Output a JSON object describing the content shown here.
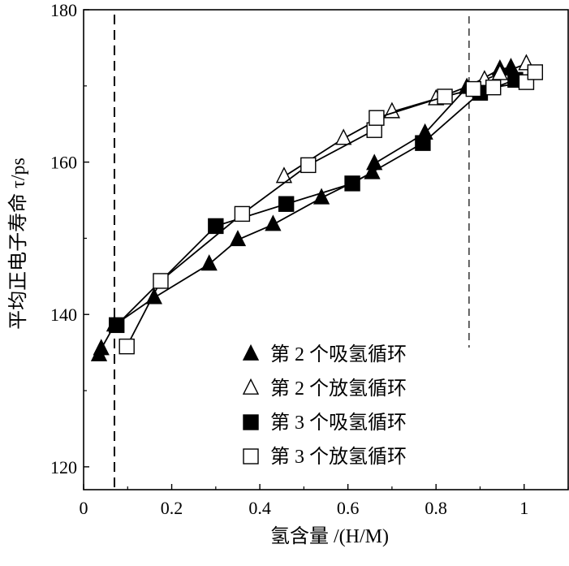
{
  "chart_data": {
    "type": "line",
    "xlabel": "氢含量 /(H/M)",
    "ylabel": "平均正电子寿命 τ/ps",
    "xlim": [
      0,
      1.1
    ],
    "ylim": [
      117,
      180
    ],
    "xticks": [
      0,
      0.2,
      0.4,
      0.6,
      0.8,
      1
    ],
    "xtick_labels": [
      "0",
      "0.2",
      "0.4",
      "0.6",
      "0.8",
      "1"
    ],
    "yticks": [
      120,
      140,
      160,
      180
    ],
    "ytick_labels": [
      "120",
      "140",
      "160",
      "180"
    ],
    "grid": false,
    "legend_position": "bottom-right",
    "reference_lines_x": [
      0.07,
      0.875
    ],
    "series": [
      {
        "name": "第 2 个吸氢循环",
        "marker": "filled-triangle",
        "x": [
          0.035,
          0.04,
          0.07,
          0.16,
          0.285,
          0.35,
          0.43,
          0.54,
          0.655,
          0.66,
          0.775,
          0.87,
          0.945,
          0.97
        ],
        "y": [
          134.7,
          135.5,
          138.6,
          142.2,
          146.6,
          149.8,
          151.8,
          155.3,
          158.6,
          159.8,
          163.8,
          169.8,
          172.2,
          172.4
        ]
      },
      {
        "name": "第 2 个放氢循环",
        "marker": "open-triangle",
        "x": [
          0.455,
          0.59,
          0.7,
          0.8,
          0.91,
          0.945,
          1.005
        ],
        "y": [
          158.1,
          163.1,
          166.6,
          168.3,
          170.8,
          171.6,
          172.9
        ]
      },
      {
        "name": "第 3 个吸氢循环",
        "marker": "filled-square",
        "x": [
          0.075,
          0.3,
          0.46,
          0.61,
          0.77,
          0.9,
          0.98
        ],
        "y": [
          138.6,
          151.6,
          154.5,
          157.2,
          162.5,
          169.1,
          170.8
        ]
      },
      {
        "name": "第 3 个放氢循环",
        "marker": "open-square",
        "x": [
          0.098,
          0.175,
          0.36,
          0.51,
          0.66,
          0.665,
          0.82,
          0.885,
          0.93,
          1.005,
          1.025
        ],
        "y": [
          135.8,
          144.4,
          153.2,
          159.6,
          164.2,
          165.8,
          168.6,
          169.6,
          169.8,
          170.5,
          171.8
        ]
      }
    ]
  }
}
